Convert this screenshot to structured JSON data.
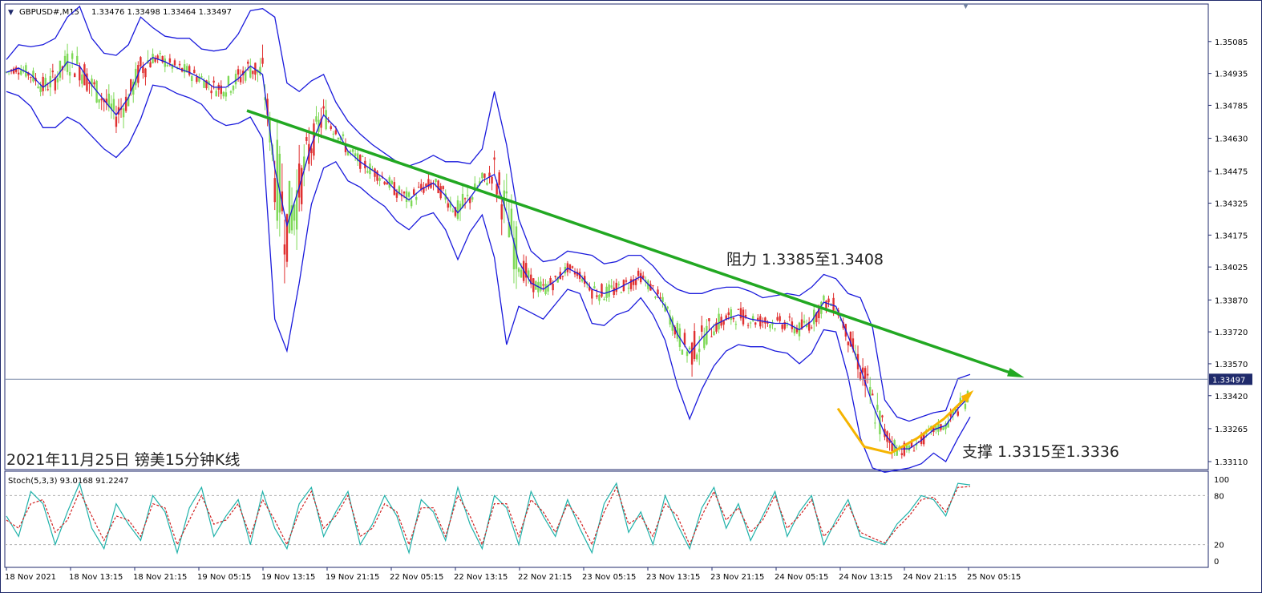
{
  "header": {
    "symbol": "GBPUSD#,M15",
    "ohlc": "1.33476 1.33498 1.33464 1.33497",
    "sub_header": "Stoch(5,3,3) 93.0168 91.2247"
  },
  "annotations": {
    "resistance": "阻力 1.3385至1.3408",
    "support": "支撑 1.3315至1.3336",
    "caption": "2021年11月25日 镑美15分钟K线"
  },
  "colors": {
    "bull": "#7ed957",
    "bear": "#e03030",
    "band": "#1a1adc",
    "trendline": "#22a822",
    "support_arrow": "#f5b400",
    "stoch_main": "#20b2aa",
    "stoch_signal": "#d02020",
    "frame": "#1f2a6b"
  },
  "chart_data": [
    {
      "type": "candlestick",
      "title": "GBPUSD#,M15",
      "price_ticks": [
        "1.35085",
        "1.34935",
        "1.34785",
        "1.34630",
        "1.34475",
        "1.34325",
        "1.34175",
        "1.34025",
        "1.33870",
        "1.33720",
        "1.33570",
        "1.33420",
        "1.33265",
        "1.33110"
      ],
      "current_price": "1.33497",
      "ylim": [
        1.3308,
        1.3525
      ],
      "x_ticks": [
        "18 Nov 2021",
        "18 Nov 13:15",
        "18 Nov 21:15",
        "19 Nov 05:15",
        "19 Nov 13:15",
        "19 Nov 21:15",
        "22 Nov 05:15",
        "22 Nov 13:15",
        "22 Nov 21:15",
        "23 Nov 05:15",
        "23 Nov 13:15",
        "23 Nov 21:15",
        "24 Nov 05:15",
        "24 Nov 13:15",
        "24 Nov 21:15",
        "25 Nov 05:15"
      ],
      "series": [
        {
          "name": "Bollinger middle",
          "values": [
            1.3494,
            1.3496,
            1.3493,
            1.3487,
            1.3491,
            1.3499,
            1.3497,
            1.3488,
            1.3481,
            1.3474,
            1.3482,
            1.3496,
            1.3501,
            1.3499,
            1.3496,
            1.3494,
            1.3491,
            1.3487,
            1.3487,
            1.3491,
            1.3497,
            1.3493,
            1.3449,
            1.3422,
            1.344,
            1.346,
            1.3474,
            1.3468,
            1.3457,
            1.3452,
            1.3448,
            1.3444,
            1.3438,
            1.3434,
            1.3439,
            1.3442,
            1.3436,
            1.3428,
            1.3435,
            1.3443,
            1.3446,
            1.3428,
            1.3405,
            1.3395,
            1.3392,
            1.3396,
            1.3402,
            1.3399,
            1.3392,
            1.339,
            1.3392,
            1.3395,
            1.3398,
            1.3392,
            1.3384,
            1.3371,
            1.3362,
            1.3369,
            1.3375,
            1.3378,
            1.338,
            1.3378,
            1.3377,
            1.3376,
            1.3376,
            1.3373,
            1.3377,
            1.3386,
            1.3384,
            1.337,
            1.3355,
            1.3338,
            1.3324,
            1.3317,
            1.3317,
            1.3321,
            1.3326,
            1.3328,
            1.3336,
            1.3342
          ]
        },
        {
          "name": "Bollinger upper",
          "values": [
            1.35,
            1.3507,
            1.3506,
            1.3507,
            1.351,
            1.352,
            1.3525,
            1.351,
            1.3503,
            1.3502,
            1.3507,
            1.352,
            1.3515,
            1.3511,
            1.351,
            1.351,
            1.3505,
            1.3504,
            1.3505,
            1.3512,
            1.3523,
            1.3524,
            1.352,
            1.3489,
            1.3485,
            1.349,
            1.3493,
            1.348,
            1.3471,
            1.3465,
            1.346,
            1.3456,
            1.3452,
            1.345,
            1.3452,
            1.3455,
            1.3452,
            1.3452,
            1.3451,
            1.3458,
            1.3485,
            1.346,
            1.3425,
            1.341,
            1.3405,
            1.3406,
            1.341,
            1.3409,
            1.3408,
            1.3404,
            1.3405,
            1.3408,
            1.3408,
            1.3403,
            1.3396,
            1.3392,
            1.339,
            1.339,
            1.3392,
            1.3393,
            1.3393,
            1.3391,
            1.3388,
            1.3389,
            1.339,
            1.3389,
            1.3393,
            1.3399,
            1.3397,
            1.339,
            1.3388,
            1.3374,
            1.334,
            1.3332,
            1.333,
            1.3332,
            1.3334,
            1.3335,
            1.335,
            1.3352
          ]
        },
        {
          "name": "Bollinger lower",
          "values": [
            1.3485,
            1.3483,
            1.3478,
            1.3468,
            1.3468,
            1.3473,
            1.347,
            1.3464,
            1.3458,
            1.3454,
            1.346,
            1.3472,
            1.3488,
            1.3487,
            1.3484,
            1.3482,
            1.3479,
            1.3472,
            1.3469,
            1.347,
            1.3473,
            1.3463,
            1.3378,
            1.3363,
            1.3395,
            1.3432,
            1.3449,
            1.3452,
            1.3443,
            1.344,
            1.3435,
            1.3431,
            1.3424,
            1.342,
            1.3426,
            1.3428,
            1.342,
            1.3406,
            1.3419,
            1.3427,
            1.3407,
            1.3366,
            1.3384,
            1.3381,
            1.3378,
            1.3385,
            1.3392,
            1.339,
            1.3376,
            1.3375,
            1.338,
            1.3382,
            1.3388,
            1.338,
            1.3368,
            1.3347,
            1.3331,
            1.3345,
            1.3356,
            1.3363,
            1.3366,
            1.3365,
            1.3365,
            1.3363,
            1.3362,
            1.3357,
            1.3362,
            1.3373,
            1.3372,
            1.3351,
            1.3322,
            1.3308,
            1.3306,
            1.3307,
            1.3308,
            1.331,
            1.3315,
            1.3311,
            1.3322,
            1.3332
          ]
        }
      ],
      "trendline": {
        "from": [
          "19 Nov 13:15",
          1.3476
        ],
        "to": [
          "25 Nov 05:15",
          1.335
        ],
        "label": "阻力 1.3385至1.3408"
      },
      "support_curve": {
        "label": "支撑 1.3315至1.3336",
        "points": [
          1.3336,
          1.3318,
          1.3315,
          1.3322,
          1.3331,
          1.3343
        ]
      }
    },
    {
      "type": "line",
      "title": "Stoch(5,3,3)",
      "levels": [
        "100",
        "80",
        "20",
        "0"
      ],
      "ylim": [
        0,
        100
      ],
      "series": [
        {
          "name": "main",
          "values": [
            55,
            30,
            85,
            70,
            20,
            60,
            95,
            40,
            15,
            70,
            45,
            25,
            80,
            60,
            10,
            65,
            90,
            30,
            55,
            75,
            20,
            85,
            40,
            15,
            70,
            90,
            30,
            60,
            85,
            20,
            45,
            80,
            55,
            10,
            75,
            60,
            25,
            90,
            45,
            15,
            80,
            65,
            20,
            85,
            55,
            30,
            75,
            40,
            10,
            70,
            95,
            35,
            60,
            20,
            80,
            45,
            15,
            65,
            90,
            40,
            70,
            25,
            55,
            85,
            30,
            60,
            80,
            20,
            50,
            75,
            30,
            25,
            20,
            45,
            60,
            80,
            75,
            55,
            95,
            93
          ]
        },
        {
          "name": "signal",
          "values": [
            50,
            40,
            70,
            75,
            35,
            50,
            85,
            55,
            25,
            55,
            50,
            30,
            70,
            65,
            20,
            50,
            80,
            45,
            50,
            70,
            30,
            75,
            50,
            20,
            60,
            85,
            40,
            55,
            80,
            30,
            40,
            70,
            60,
            20,
            65,
            65,
            30,
            80,
            55,
            20,
            70,
            70,
            30,
            75,
            60,
            35,
            70,
            50,
            20,
            60,
            90,
            45,
            55,
            30,
            70,
            55,
            20,
            55,
            85,
            50,
            65,
            35,
            50,
            80,
            40,
            55,
            75,
            30,
            45,
            70,
            35,
            28,
            22,
            40,
            55,
            75,
            78,
            60,
            90,
            91
          ]
        }
      ]
    }
  ]
}
